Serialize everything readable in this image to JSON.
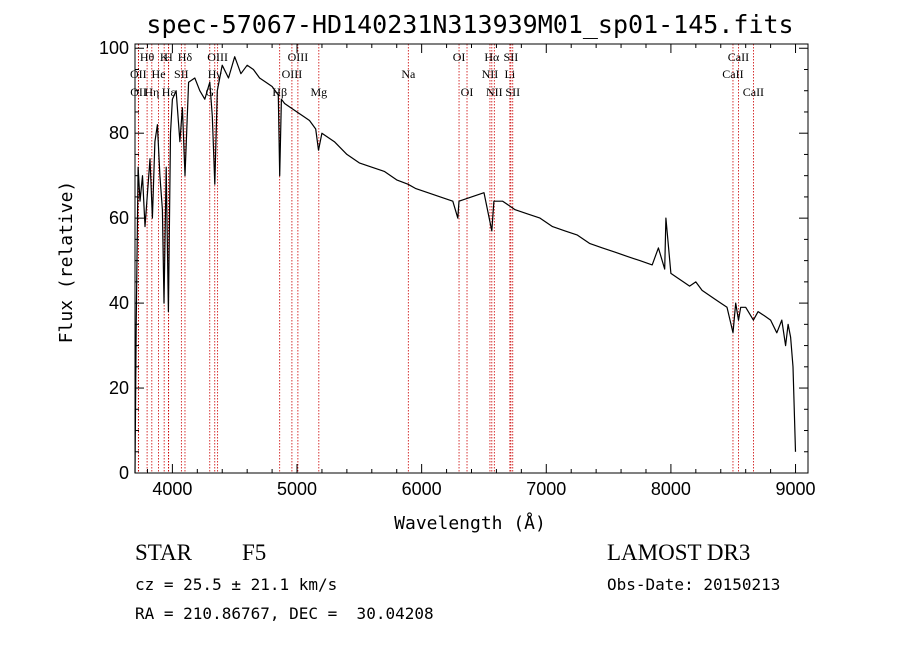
{
  "chart_data": {
    "type": "line",
    "title": "spec-57067-HD140231N313939M01_sp01-145.fits",
    "xlabel": "Wavelength (Å)",
    "ylabel": "Flux (relative)",
    "xlim": [
      3700,
      9100
    ],
    "ylim": [
      0,
      101
    ],
    "xticks": [
      4000,
      5000,
      6000,
      7000,
      8000,
      9000
    ],
    "yticks": [
      0,
      20,
      40,
      60,
      80,
      100
    ],
    "series": [
      {
        "name": "spectrum",
        "x": [
          3700,
          3710,
          3725,
          3740,
          3760,
          3780,
          3800,
          3820,
          3840,
          3860,
          3880,
          3900,
          3920,
          3933,
          3950,
          3968,
          3985,
          4000,
          4030,
          4060,
          4080,
          4101,
          4130,
          4180,
          4220,
          4260,
          4300,
          4320,
          4340,
          4360,
          4400,
          4450,
          4500,
          4550,
          4600,
          4650,
          4700,
          4750,
          4800,
          4850,
          4861,
          4875,
          4900,
          4950,
          5000,
          5050,
          5100,
          5150,
          5172,
          5200,
          5300,
          5400,
          5500,
          5600,
          5700,
          5800,
          5890,
          5950,
          6050,
          6150,
          6250,
          6290,
          6300,
          6400,
          6500,
          6563,
          6580,
          6650,
          6750,
          6850,
          6950,
          7050,
          7150,
          7250,
          7350,
          7450,
          7550,
          7650,
          7750,
          7850,
          7900,
          7950,
          7960,
          8000,
          8050,
          8100,
          8150,
          8200,
          8250,
          8300,
          8350,
          8400,
          8450,
          8498,
          8520,
          8542,
          8560,
          8600,
          8662,
          8700,
          8750,
          8800,
          8850,
          8890,
          8920,
          8940,
          8960,
          8980,
          9000
        ],
        "y": [
          0,
          35,
          72,
          64,
          70,
          58,
          66,
          74,
          60,
          78,
          82,
          70,
          62,
          40,
          72,
          38,
          80,
          88,
          90,
          78,
          86,
          70,
          92,
          93,
          90,
          88,
          92,
          84,
          68,
          90,
          96,
          93,
          98,
          94,
          96,
          95,
          93,
          92,
          91,
          89,
          70,
          88,
          87,
          86,
          85,
          84,
          83,
          81,
          76,
          80,
          78,
          75,
          73,
          72,
          71,
          69,
          68,
          67,
          66,
          65,
          64,
          60,
          64,
          65,
          66,
          57,
          64,
          64,
          62,
          61,
          60,
          58,
          57,
          56,
          54,
          53,
          52,
          51,
          50,
          49,
          53,
          48,
          60,
          47,
          46,
          45,
          44,
          45,
          43,
          42,
          41,
          40,
          39,
          33,
          40,
          36,
          39,
          39,
          36,
          38,
          37,
          36,
          33,
          36,
          30,
          35,
          32,
          25,
          5
        ]
      }
    ],
    "lines": [
      {
        "label": "Hα",
        "wave": 6563,
        "row": 0
      },
      {
        "label": "Hβ",
        "wave": 4861,
        "row": 2
      },
      {
        "label": "Hγ",
        "wave": 4340,
        "row": 1
      },
      {
        "label": "Hδ",
        "wave": 4101,
        "row": 0
      },
      {
        "label": "Hε",
        "wave": 3970,
        "row": 2
      },
      {
        "label": "Hη",
        "wave": 3835,
        "row": 2
      },
      {
        "label": "Hθ",
        "wave": 3797,
        "row": 0
      },
      {
        "label": "K",
        "wave": 3934,
        "row": 0
      },
      {
        "label": "H",
        "wave": 3968,
        "row": 0
      },
      {
        "label": "He",
        "wave": 3889,
        "row": 1
      },
      {
        "label": "OII",
        "wave": 3727,
        "row": 1
      },
      {
        "label": "OII",
        "wave": 3729,
        "row": 2
      },
      {
        "label": "SII",
        "wave": 4072,
        "row": 1
      },
      {
        "label": "G",
        "wave": 4300,
        "row": 2
      },
      {
        "label": "OIII",
        "wave": 4363,
        "row": 0
      },
      {
        "label": "OIII",
        "wave": 4959,
        "row": 1
      },
      {
        "label": "OIII",
        "wave": 5007,
        "row": 0
      },
      {
        "label": "Mg",
        "wave": 5175,
        "row": 2
      },
      {
        "label": "Na",
        "wave": 5893,
        "row": 1
      },
      {
        "label": "OI",
        "wave": 6300,
        "row": 0
      },
      {
        "label": "OI",
        "wave": 6364,
        "row": 2
      },
      {
        "label": "NII",
        "wave": 6548,
        "row": 1
      },
      {
        "label": "NII",
        "wave": 6583,
        "row": 2
      },
      {
        "label": "Li",
        "wave": 6708,
        "row": 1
      },
      {
        "label": "SII",
        "wave": 6716,
        "row": 0
      },
      {
        "label": "SII",
        "wave": 6731,
        "row": 2
      },
      {
        "label": "CaII",
        "wave": 8498,
        "row": 1
      },
      {
        "label": "CaII",
        "wave": 8542,
        "row": 0
      },
      {
        "label": "CaII",
        "wave": 8662,
        "row": 2
      }
    ],
    "line_color": "#cc0000",
    "spectrum_color": "#000000"
  },
  "info": {
    "object_class": "STAR",
    "subclass": "F5",
    "survey": "LAMOST DR3",
    "redshift": "cz = 25.5 ± 21.1 km/s",
    "obs_date": "Obs-Date: 20150213",
    "coords": "RA = 210.86767, DEC =  30.04208"
  }
}
